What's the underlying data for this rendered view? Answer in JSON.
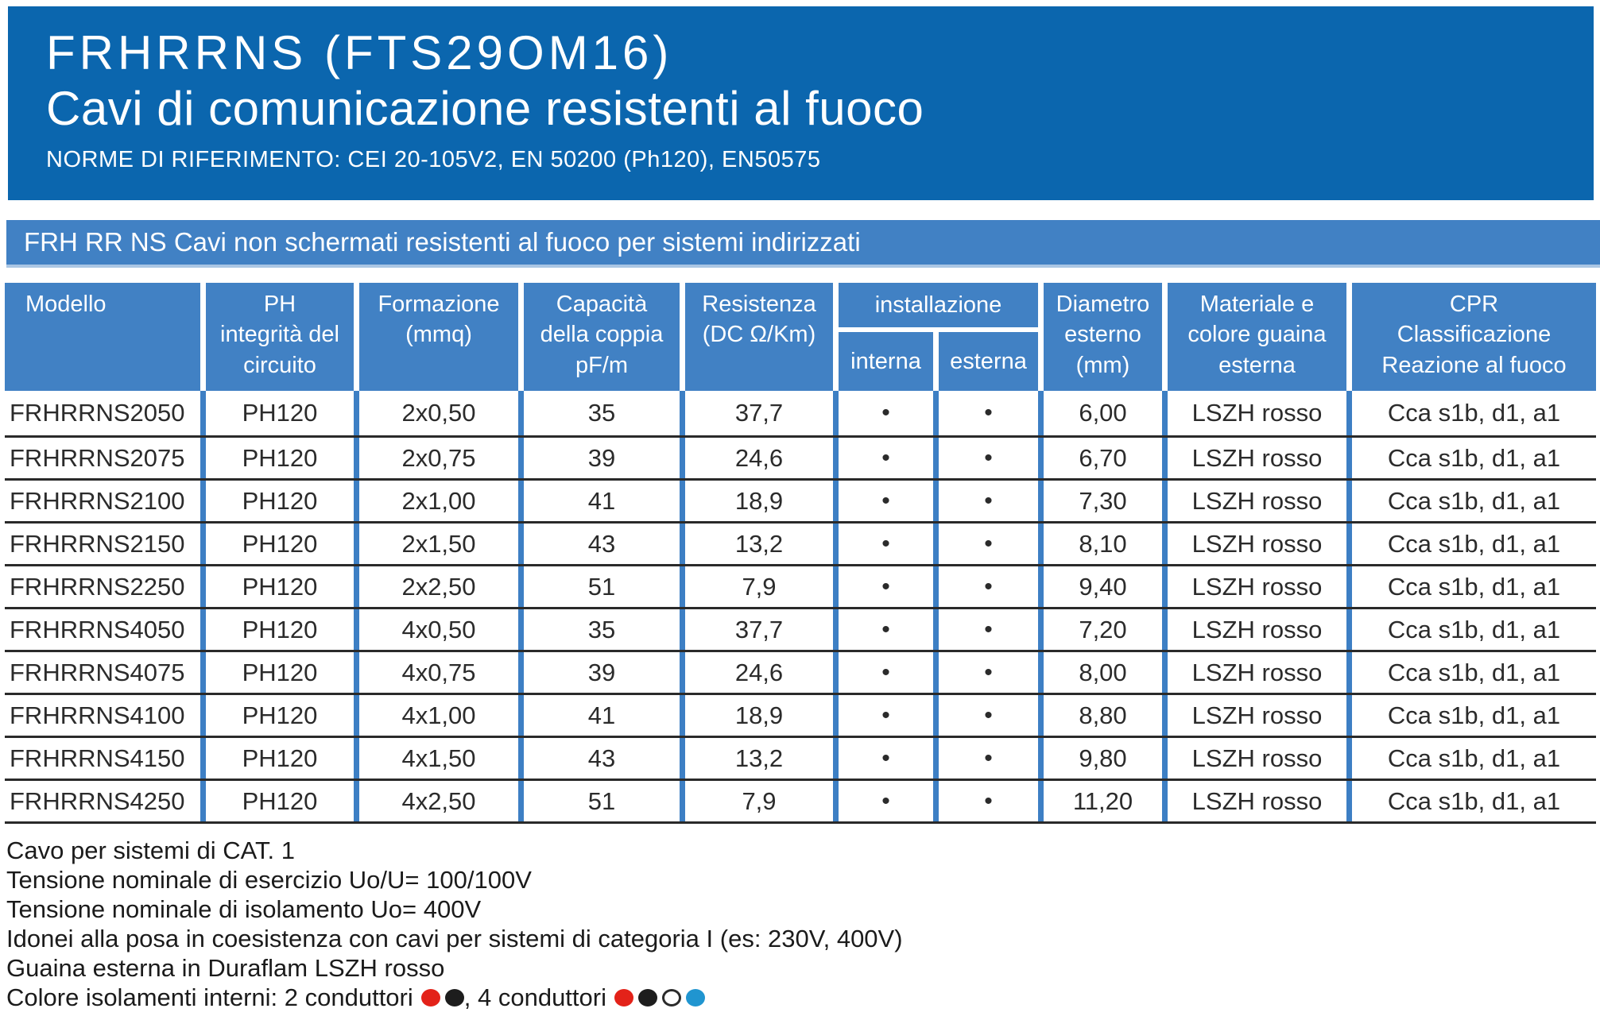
{
  "colors": {
    "banner_blue": "#0b66ae",
    "panel_blue": "#4181c4",
    "panel_edge": "#aac6e4",
    "line_blue": "#3d7fc4",
    "sep_dark": "#2a2a2a",
    "text_dark": "#2b2b2b",
    "dot_red": "#e32219",
    "dot_black": "#1d1d1d",
    "dot_white": "#ffffff",
    "dot_blue": "#2095d0"
  },
  "header": {
    "title_line1": "FRHRRNS (FTS29OM16)",
    "title_line2": "Cavi di comunicazione resistenti al fuoco",
    "norms": "NORME DI RIFERIMENTO: CEI 20-105V2, EN 50200 (Ph120), EN50575"
  },
  "strip": {
    "text": "FRH RR NS Cavi non schermati resistenti al fuoco per sistemi indirizzati"
  },
  "table": {
    "headers": {
      "modello": "Modello",
      "ph": "PH\nintegrità del\ncircuito",
      "formazione": "Formazione\n(mmq)",
      "capacita": "Capacità\ndella coppia\npF/m",
      "resistenza": "Resistenza\n(DC Ω/Km)",
      "installazione": "installazione",
      "interna": "interna",
      "esterna": "esterna",
      "diametro": "Diametro\nesterno\n(mm)",
      "materiale": "Materiale e\ncolore guaina\nesterna",
      "cpr": "CPR\nClassificazione\nReazione al fuoco"
    },
    "rows": [
      {
        "modello": "FRHRRNS2050",
        "ph": "PH120",
        "formazione": "2x0,50",
        "capacita": "35",
        "resistenza": "37,7",
        "interna": "•",
        "esterna": "•",
        "diametro": "6,00",
        "materiale": "LSZH rosso",
        "cpr": "Cca s1b, d1, a1"
      },
      {
        "modello": "FRHRRNS2075",
        "ph": "PH120",
        "formazione": "2x0,75",
        "capacita": "39",
        "resistenza": "24,6",
        "interna": "•",
        "esterna": "•",
        "diametro": "6,70",
        "materiale": "LSZH rosso",
        "cpr": "Cca s1b, d1, a1"
      },
      {
        "modello": "FRHRRNS2100",
        "ph": "PH120",
        "formazione": "2x1,00",
        "capacita": "41",
        "resistenza": "18,9",
        "interna": "•",
        "esterna": "•",
        "diametro": "7,30",
        "materiale": "LSZH rosso",
        "cpr": "Cca s1b, d1, a1"
      },
      {
        "modello": "FRHRRNS2150",
        "ph": "PH120",
        "formazione": "2x1,50",
        "capacita": "43",
        "resistenza": "13,2",
        "interna": "•",
        "esterna": "•",
        "diametro": "8,10",
        "materiale": "LSZH rosso",
        "cpr": "Cca s1b, d1, a1"
      },
      {
        "modello": "FRHRRNS2250",
        "ph": "PH120",
        "formazione": "2x2,50",
        "capacita": "51",
        "resistenza": "7,9",
        "interna": "•",
        "esterna": "•",
        "diametro": "9,40",
        "materiale": "LSZH rosso",
        "cpr": "Cca s1b, d1, a1"
      },
      {
        "modello": "FRHRRNS4050",
        "ph": "PH120",
        "formazione": "4x0,50",
        "capacita": "35",
        "resistenza": "37,7",
        "interna": "•",
        "esterna": "•",
        "diametro": "7,20",
        "materiale": "LSZH rosso",
        "cpr": "Cca s1b, d1, a1"
      },
      {
        "modello": "FRHRRNS4075",
        "ph": "PH120",
        "formazione": "4x0,75",
        "capacita": "39",
        "resistenza": "24,6",
        "interna": "•",
        "esterna": "•",
        "diametro": "8,00",
        "materiale": "LSZH rosso",
        "cpr": "Cca s1b, d1, a1"
      },
      {
        "modello": "FRHRRNS4100",
        "ph": "PH120",
        "formazione": "4x1,00",
        "capacita": "41",
        "resistenza": "18,9",
        "interna": "•",
        "esterna": "•",
        "diametro": "8,80",
        "materiale": "LSZH rosso",
        "cpr": "Cca s1b, d1, a1"
      },
      {
        "modello": "FRHRRNS4150",
        "ph": "PH120",
        "formazione": "4x1,50",
        "capacita": "43",
        "resistenza": "13,2",
        "interna": "•",
        "esterna": "•",
        "diametro": "9,80",
        "materiale": "LSZH rosso",
        "cpr": "Cca s1b, d1, a1"
      },
      {
        "modello": "FRHRRNS4250",
        "ph": "PH120",
        "formazione": "4x2,50",
        "capacita": "51",
        "resistenza": "7,9",
        "interna": "•",
        "esterna": "•",
        "diametro": "11,20",
        "materiale": "LSZH rosso",
        "cpr": "Cca s1b, d1, a1"
      }
    ]
  },
  "notes": {
    "line1": "Cavo per sistemi di CAT. 1",
    "line2": "Tensione nominale di esercizio Uo/U= 100/100V",
    "line3": "Tensione nominale di isolamento Uo= 400V",
    "line4": "Idonei alla posa in coesistenza con cavi per sistemi di categoria I (es: 230V, 400V)",
    "line5": "Guaina esterna in Duraflam LSZH rosso",
    "legend_prefix": "Colore isolamenti interni: 2 conduttori",
    "legend_mid": ", 4 conduttori",
    "legend_2_dots": [
      "dot_red",
      "dot_black"
    ],
    "legend_4_dots": [
      "dot_red",
      "dot_black",
      "dot_white",
      "dot_blue"
    ]
  }
}
